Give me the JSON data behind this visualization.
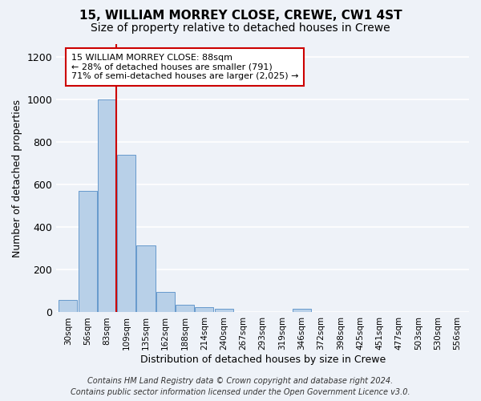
{
  "title": "15, WILLIAM MORREY CLOSE, CREWE, CW1 4ST",
  "subtitle": "Size of property relative to detached houses in Crewe",
  "xlabel": "Distribution of detached houses by size in Crewe",
  "ylabel": "Number of detached properties",
  "bar_labels": [
    "30sqm",
    "56sqm",
    "83sqm",
    "109sqm",
    "135sqm",
    "162sqm",
    "188sqm",
    "214sqm",
    "240sqm",
    "267sqm",
    "293sqm",
    "319sqm",
    "346sqm",
    "372sqm",
    "398sqm",
    "425sqm",
    "451sqm",
    "477sqm",
    "503sqm",
    "530sqm",
    "556sqm"
  ],
  "bar_values": [
    60,
    570,
    1000,
    740,
    315,
    95,
    35,
    25,
    15,
    0,
    0,
    0,
    15,
    0,
    0,
    0,
    0,
    0,
    0,
    0,
    0
  ],
  "bar_color": "#b8d0e8",
  "bar_edge_color": "#6699cc",
  "red_line_color": "#cc0000",
  "annotation_box_text": "15 WILLIAM MORREY CLOSE: 88sqm\n← 28% of detached houses are smaller (791)\n71% of semi-detached houses are larger (2,025) →",
  "ylim": [
    0,
    1260
  ],
  "yticks": [
    0,
    200,
    400,
    600,
    800,
    1000,
    1200
  ],
  "footer_line1": "Contains HM Land Registry data © Crown copyright and database right 2024.",
  "footer_line2": "Contains public sector information licensed under the Open Government Licence v3.0.",
  "bg_color": "#eef2f8",
  "plot_bg_color": "#eef2f8",
  "grid_color": "#ffffff",
  "title_fontsize": 11,
  "subtitle_fontsize": 10,
  "footer_fontsize": 7
}
